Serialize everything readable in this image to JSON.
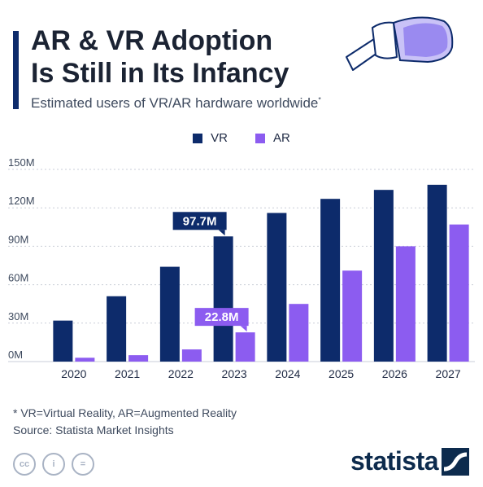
{
  "header": {
    "title_line1": "AR & VR Adoption",
    "title_line2": "Is Still in Its Infancy",
    "subtitle": "Estimated users of VR/AR hardware worldwide",
    "subtitle_marker": "*"
  },
  "colors": {
    "accent": "#0d2b6b",
    "vr": "#0d2b6b",
    "ar": "#8c5cf0"
  },
  "chart_data": {
    "type": "bar",
    "categories": [
      "2020",
      "2021",
      "2022",
      "2023",
      "2024",
      "2025",
      "2026",
      "2027"
    ],
    "series": [
      {
        "name": "VR",
        "color": "#0d2b6b",
        "values": [
          32,
          51,
          74,
          97.7,
          116,
          127,
          134,
          138
        ]
      },
      {
        "name": "AR",
        "color": "#8c5cf0",
        "values": [
          3,
          5,
          9.5,
          22.8,
          45,
          71,
          90,
          107
        ]
      }
    ],
    "ylim": [
      0,
      150
    ],
    "yticks": [
      0,
      30,
      60,
      90,
      120,
      150
    ],
    "ytick_labels": [
      "0M",
      "30M",
      "60M",
      "90M",
      "120M",
      "150M"
    ],
    "grid": true,
    "legend_position": "top-center",
    "annotations": [
      {
        "series": "VR",
        "category": "2023",
        "text": "97.7M"
      },
      {
        "series": "AR",
        "category": "2023",
        "text": "22.8M"
      }
    ]
  },
  "footnote": {
    "line1": "* VR=Virtual Reality, AR=Augmented Reality",
    "line2": "Source: Statista Market Insights"
  },
  "license_icons": [
    "creative-commons-icon",
    "attribution-icon",
    "no-derivatives-icon"
  ],
  "license_icon_labels": [
    "cc",
    "i",
    "="
  ],
  "brand": {
    "name": "statista"
  }
}
